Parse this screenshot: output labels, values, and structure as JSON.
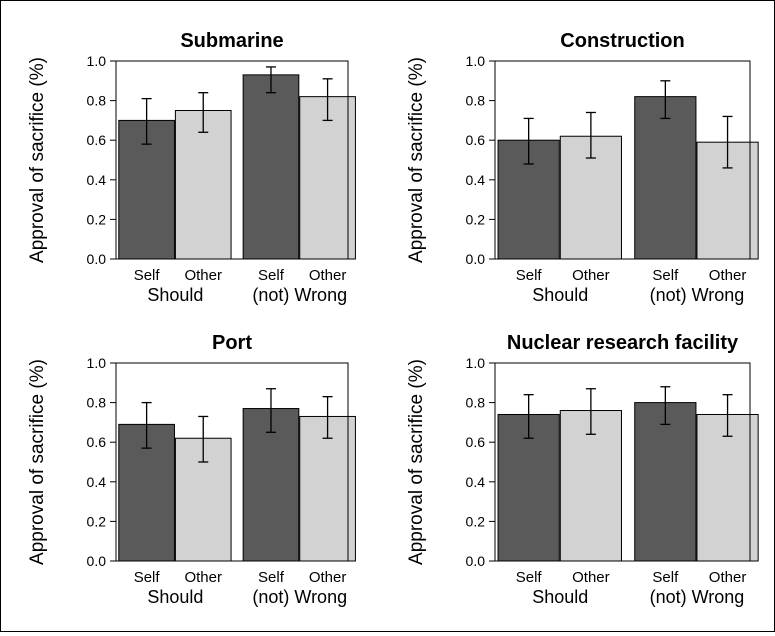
{
  "colors": {
    "self": "#5a5a5a",
    "other": "#d2d2d2",
    "axis": "#000000"
  },
  "chart_data": [
    {
      "type": "bar",
      "title": "Submarine",
      "ylabel": "Approval of sacrifice (%)",
      "ylim": [
        0,
        1
      ],
      "yticks": [
        "0.0",
        "0.2",
        "0.4",
        "0.6",
        "0.8",
        "1.0"
      ],
      "groups": [
        "Should",
        "(not) Wrong"
      ],
      "categories": [
        "Self",
        "Other",
        "Self",
        "Other"
      ],
      "values": [
        0.7,
        0.75,
        0.93,
        0.82
      ],
      "error_low": [
        0.58,
        0.64,
        0.84,
        0.7
      ],
      "error_high": [
        0.81,
        0.84,
        0.97,
        0.91
      ]
    },
    {
      "type": "bar",
      "title": "Construction",
      "ylabel": "Approval of sacrifice (%)",
      "ylim": [
        0,
        1
      ],
      "yticks": [
        "0.0",
        "0.2",
        "0.4",
        "0.6",
        "0.8",
        "1.0"
      ],
      "groups": [
        "Should",
        "(not) Wrong"
      ],
      "categories": [
        "Self",
        "Other",
        "Self",
        "Other"
      ],
      "values": [
        0.6,
        0.62,
        0.82,
        0.59
      ],
      "error_low": [
        0.48,
        0.51,
        0.71,
        0.46
      ],
      "error_high": [
        0.71,
        0.74,
        0.9,
        0.72
      ]
    },
    {
      "type": "bar",
      "title": "Port",
      "ylabel": "Approval of sacrifice (%)",
      "ylim": [
        0,
        1
      ],
      "yticks": [
        "0.0",
        "0.2",
        "0.4",
        "0.6",
        "0.8",
        "1.0"
      ],
      "groups": [
        "Should",
        "(not) Wrong"
      ],
      "categories": [
        "Self",
        "Other",
        "Self",
        "Other"
      ],
      "values": [
        0.69,
        0.62,
        0.77,
        0.73
      ],
      "error_low": [
        0.57,
        0.5,
        0.65,
        0.62
      ],
      "error_high": [
        0.8,
        0.73,
        0.87,
        0.83
      ]
    },
    {
      "type": "bar",
      "title": "Nuclear research facility",
      "ylabel": "Approval of sacrifice (%)",
      "ylim": [
        0,
        1
      ],
      "yticks": [
        "0.0",
        "0.2",
        "0.4",
        "0.6",
        "0.8",
        "1.0"
      ],
      "groups": [
        "Should",
        "(not) Wrong"
      ],
      "categories": [
        "Self",
        "Other",
        "Self",
        "Other"
      ],
      "values": [
        0.74,
        0.76,
        0.8,
        0.74
      ],
      "error_low": [
        0.62,
        0.64,
        0.69,
        0.63
      ],
      "error_high": [
        0.84,
        0.87,
        0.88,
        0.84
      ]
    }
  ]
}
